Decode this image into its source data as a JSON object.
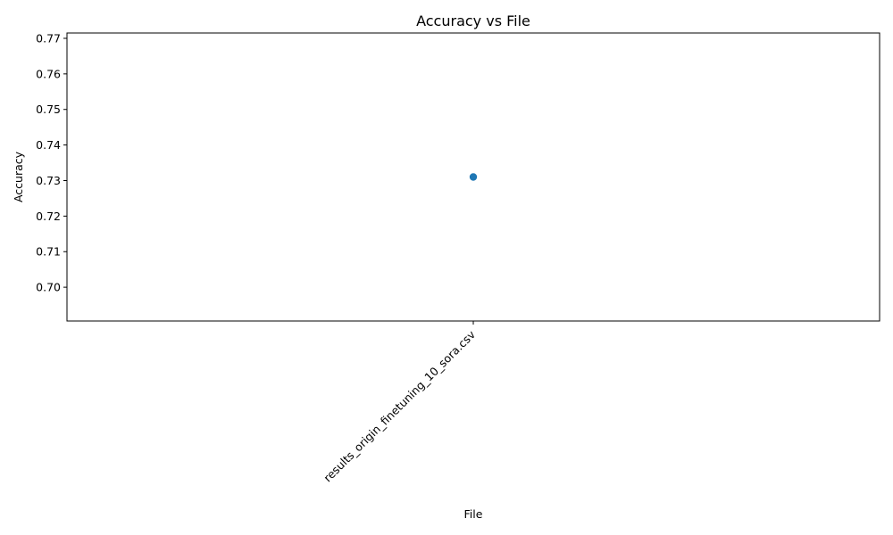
{
  "chart_data": {
    "type": "scatter",
    "title": "Accuracy vs File",
    "xlabel": "File",
    "ylabel": "Accuracy",
    "categories": [
      "results_origin_finetuning_10_sora.csv"
    ],
    "series": [
      {
        "name": "Accuracy",
        "values": [
          0.731
        ],
        "color": "#1f77b4"
      }
    ],
    "ylim": [
      0.6905,
      0.7715
    ],
    "yticks": [
      "0.70",
      "0.71",
      "0.72",
      "0.73",
      "0.74",
      "0.75",
      "0.76",
      "0.77"
    ],
    "grid": false,
    "legend": "none"
  }
}
